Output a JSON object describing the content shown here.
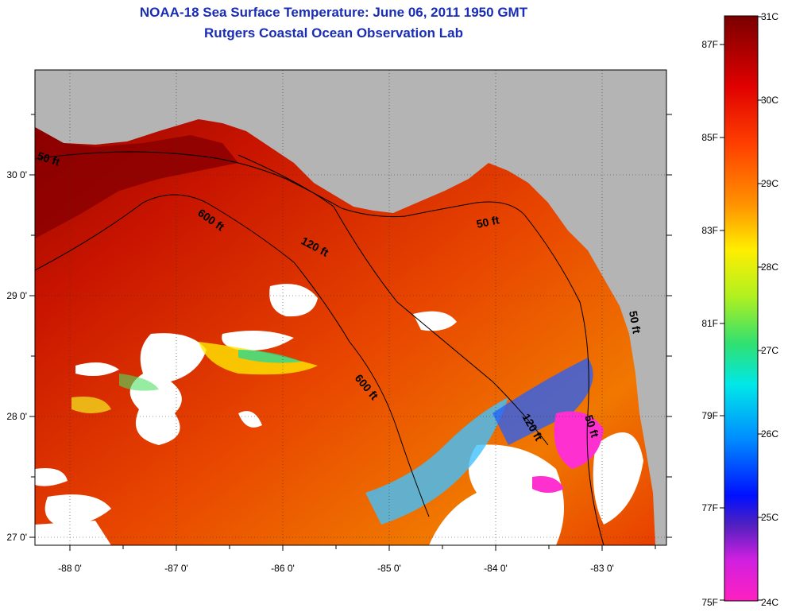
{
  "title": {
    "line1": "NOAA-18 Sea Surface Temperature:  June 06, 2011 1950 GMT",
    "line2": "Rutgers Coastal Ocean Observation Lab"
  },
  "map": {
    "lon_labels": [
      "-88 0'",
      "-87 0'",
      "-86 0'",
      "-85 0'",
      "-84 0'",
      "-83 0'"
    ],
    "lat_labels": [
      "30 0'",
      "29 0'",
      "28 0'",
      "27 0'"
    ],
    "contours": [
      "50 ft",
      "600 ft",
      "120 ft",
      "50 ft",
      "600 ft",
      "120 ft",
      "50 ft",
      "50 ft"
    ]
  },
  "colorbar": {
    "celsius": [
      "31C",
      "30C",
      "29C",
      "28C",
      "27C",
      "26C",
      "25C",
      "24C"
    ],
    "fahrenheit": [
      "87F",
      "85F",
      "83F",
      "81F",
      "79F",
      "77F",
      "75F"
    ]
  },
  "colors": {
    "title": "#1a2db5",
    "land": "#b4b4b4",
    "warm": "#e02000",
    "hot": "#8b0000",
    "no_data": "#ffffff"
  }
}
